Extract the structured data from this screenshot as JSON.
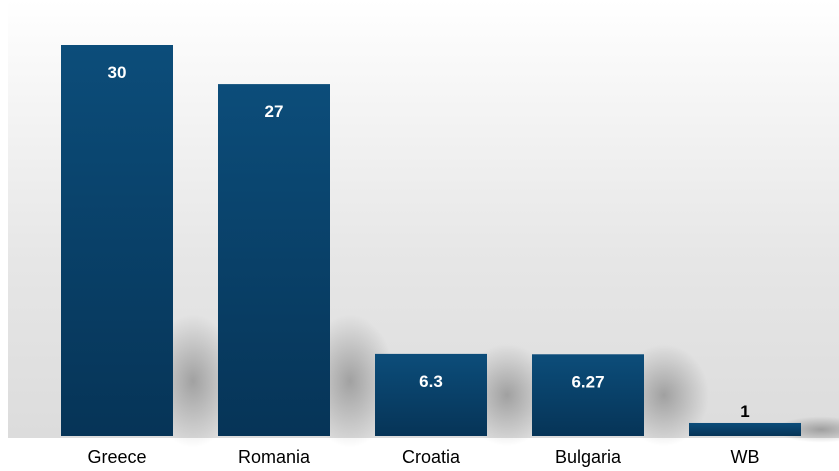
{
  "chart_data": {
    "type": "bar",
    "categories": [
      "Greece",
      "Romania",
      "Croatia",
      "Bulgaria",
      "WB"
    ],
    "values": [
      30,
      27,
      6.3,
      6.27,
      1
    ],
    "value_labels": [
      "30",
      "27",
      "6.3",
      "6.27",
      "1"
    ],
    "title": "",
    "xlabel": "",
    "ylabel": "",
    "ylim": [
      0,
      30
    ],
    "grid": false,
    "legend": "none"
  },
  "colors": {
    "bar": "#0b4a75",
    "bar_shade": "#08375a",
    "label_inside": "#ffffff",
    "label_outside": "#000000"
  }
}
